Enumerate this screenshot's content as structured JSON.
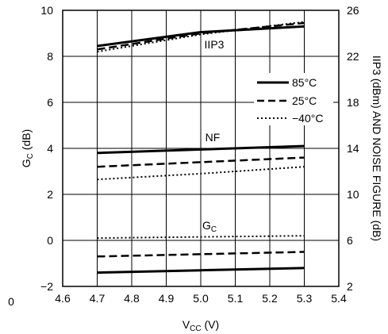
{
  "chart_data": {
    "type": "line",
    "xlabel": {
      "main": "V",
      "sub": "CC",
      "suffix": " (V)"
    },
    "ylabel_left": {
      "main": "G",
      "sub": "C",
      "suffix": " (dB)"
    },
    "ylabel_right": "IIP3 (dBm) AND NOISE FIGURE (dB)",
    "xlim": [
      4.6,
      5.4
    ],
    "ylim_left": [
      -2,
      10
    ],
    "ylim_right": [
      2,
      26
    ],
    "x_ticks": [
      "4.6",
      "4.7",
      "4.8",
      "4.9",
      "5.0",
      "5.1",
      "5.2",
      "5.3",
      "5.4"
    ],
    "y_left_ticks": [
      "−2",
      "0",
      "2",
      "4",
      "6",
      "8",
      "10"
    ],
    "y_right_ticks": [
      "2",
      "6",
      "10",
      "14",
      "18",
      "22",
      "26"
    ],
    "stray_label": "0",
    "grid": true,
    "legend_position": "right, inside plot",
    "legend": [
      {
        "label": "85°C",
        "style": "solid"
      },
      {
        "label": "25°C",
        "style": "dashed"
      },
      {
        "label": "−40°C",
        "style": "dotted"
      }
    ],
    "annotations": {
      "iip3": "IIP3",
      "nf": "NF",
      "gc_main": "G",
      "gc_sub": "C"
    },
    "series": [
      {
        "group": "IIP3",
        "axis": "right",
        "temp": "85°C",
        "style": "solid",
        "x": [
          4.7,
          5.0,
          5.3
        ],
        "y": [
          22.9,
          24.1,
          24.6
        ]
      },
      {
        "group": "IIP3",
        "axis": "right",
        "temp": "25°C",
        "style": "dashed",
        "x": [
          4.7,
          5.0,
          5.3
        ],
        "y": [
          22.6,
          24.0,
          24.9
        ]
      },
      {
        "group": "IIP3",
        "axis": "right",
        "temp": "−40°C",
        "style": "dotted",
        "x": [
          4.7,
          5.0,
          5.3
        ],
        "y": [
          22.4,
          23.9,
          25.0
        ]
      },
      {
        "group": "NF",
        "axis": "right",
        "temp": "85°C",
        "style": "solid",
        "x": [
          4.7,
          5.0,
          5.3
        ],
        "y": [
          13.6,
          13.9,
          14.2
        ]
      },
      {
        "group": "NF",
        "axis": "right",
        "temp": "25°C",
        "style": "dashed",
        "x": [
          4.7,
          5.0,
          5.3
        ],
        "y": [
          12.4,
          12.8,
          13.2
        ]
      },
      {
        "group": "NF",
        "axis": "right",
        "temp": "−40°C",
        "style": "dotted",
        "x": [
          4.7,
          5.0,
          5.3
        ],
        "y": [
          11.3,
          11.8,
          12.4
        ]
      },
      {
        "group": "GC",
        "axis": "left",
        "temp": "85°C",
        "style": "solid",
        "x": [
          4.7,
          5.0,
          5.3
        ],
        "y": [
          -1.4,
          -1.3,
          -1.2
        ]
      },
      {
        "group": "GC",
        "axis": "left",
        "temp": "25°C",
        "style": "dashed",
        "x": [
          4.7,
          5.0,
          5.3
        ],
        "y": [
          -0.7,
          -0.6,
          -0.5
        ]
      },
      {
        "group": "GC",
        "axis": "left",
        "temp": "−40°C",
        "style": "dotted",
        "x": [
          4.7,
          5.0,
          5.3
        ],
        "y": [
          0.1,
          0.15,
          0.2
        ]
      }
    ]
  }
}
